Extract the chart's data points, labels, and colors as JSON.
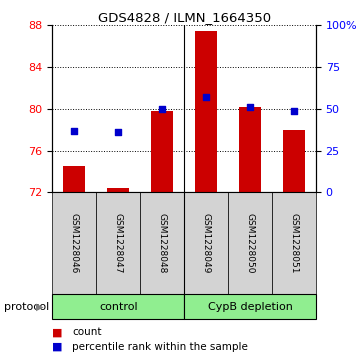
{
  "title": "GDS4828 / ILMN_1664350",
  "samples": [
    "GSM1228046",
    "GSM1228047",
    "GSM1228048",
    "GSM1228049",
    "GSM1228050",
    "GSM1228051"
  ],
  "bar_values": [
    74.5,
    72.4,
    79.8,
    87.5,
    80.2,
    78.0
  ],
  "bar_bottom": 72.0,
  "percentile_right": [
    37,
    36,
    50,
    57,
    51,
    49
  ],
  "group_labels": [
    "control",
    "CypB depletion"
  ],
  "group_colors": [
    "#90EE90",
    "#90EE90"
  ],
  "ylim_left": [
    72,
    88
  ],
  "ylim_right": [
    0,
    100
  ],
  "yticks_left": [
    72,
    76,
    80,
    84,
    88
  ],
  "yticks_right": [
    0,
    25,
    50,
    75,
    100
  ],
  "ytick_labels_right": [
    "0",
    "25",
    "50",
    "75",
    "100%"
  ],
  "bar_color": "#cc0000",
  "dot_color": "#0000cc",
  "bar_width": 0.5,
  "protocol_label": "protocol",
  "legend_count_label": "count",
  "legend_pct_label": "percentile rank within the sample",
  "sample_cell_color": "#d3d3d3"
}
